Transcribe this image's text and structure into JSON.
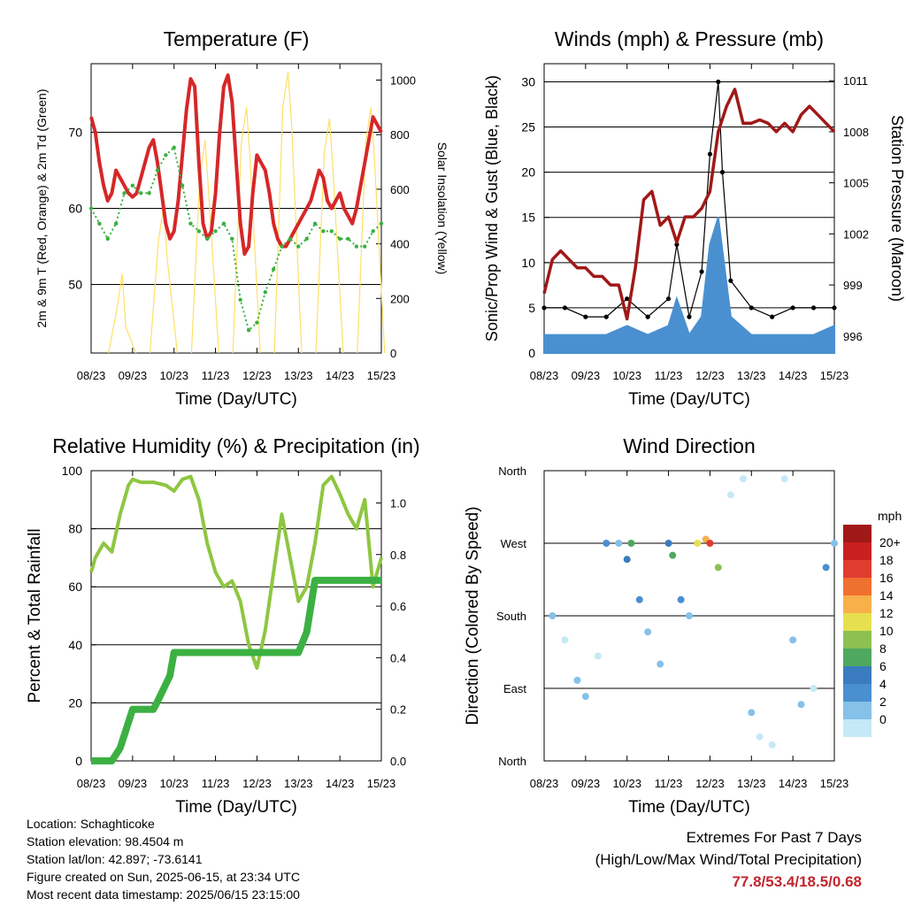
{
  "chart_data": [
    {
      "type": "line",
      "title": "Temperature (F)",
      "xlabel": "Time (Day/UTC)",
      "ylabel": "2m & 9m T (Red, Orange) & 2m Td (Green)",
      "y2label": "Solar Insolation (Yellow)",
      "x_ticks": [
        "08/23",
        "09/23",
        "10/23",
        "11/23",
        "12/23",
        "13/23",
        "14/23",
        "15/23"
      ],
      "y_ticks": [
        50,
        60,
        70
      ],
      "y2_ticks": [
        0,
        200,
        400,
        600,
        800,
        1000
      ],
      "ylim": [
        41,
        79
      ],
      "y2lim": [
        0,
        1060
      ],
      "grid": "horizontal",
      "series": [
        {
          "color": "#d62728",
          "x": [
            0,
            0.1,
            0.2,
            0.3,
            0.4,
            0.5,
            0.6,
            0.7,
            0.8,
            0.9,
            1.0,
            1.1,
            1.2,
            1.3,
            1.4,
            1.5,
            1.6,
            1.7,
            1.8,
            1.9,
            2.0,
            2.1,
            2.2,
            2.3,
            2.4,
            2.5,
            2.6,
            2.7,
            2.8,
            2.9,
            3.0,
            3.1,
            3.2,
            3.3,
            3.4,
            3.5,
            3.6,
            3.7,
            3.8,
            3.9,
            4.0,
            4.1,
            4.2,
            4.3,
            4.4,
            4.5,
            4.6,
            4.7,
            4.8,
            4.9,
            5.0,
            5.1,
            5.2,
            5.3,
            5.4,
            5.5,
            5.6,
            5.7,
            5.8,
            5.9,
            6.0,
            6.1,
            6.2,
            6.3,
            6.4,
            6.5,
            6.6,
            6.7,
            6.8,
            6.9,
            7.0
          ],
          "values": [
            72,
            70,
            66,
            63,
            61,
            62,
            65,
            64,
            63,
            62,
            61.5,
            62,
            64,
            66,
            68,
            69,
            66,
            62,
            58,
            56,
            57,
            61,
            67,
            73,
            77,
            76,
            66,
            58,
            56,
            57,
            62,
            70,
            76,
            77.5,
            74,
            66,
            58,
            54,
            55,
            62,
            67,
            66,
            65,
            62,
            58,
            56,
            55,
            55,
            56,
            57,
            58,
            59,
            60,
            61,
            63,
            65,
            64,
            61,
            60,
            61,
            62,
            60,
            59,
            58,
            60,
            63,
            66,
            69,
            72,
            71,
            70
          ]
        },
        {
          "color": "#f0a030",
          "x": [
            0,
            0.5,
            1.0,
            1.5,
            2.0,
            2.4,
            3.0,
            3.3,
            4.0,
            4.5,
            5.0,
            5.5,
            6.0,
            6.5,
            6.8,
            7.0
          ],
          "values": [
            71.5,
            61.8,
            61.3,
            68.8,
            56.8,
            76,
            57,
            77,
            66.5,
            56,
            57.8,
            64.5,
            61.5,
            62.8,
            71.5,
            70
          ]
        },
        {
          "color": "#3cb043",
          "x": [
            0,
            0.2,
            0.4,
            0.6,
            0.8,
            1.0,
            1.2,
            1.4,
            1.6,
            1.8,
            2.0,
            2.2,
            2.4,
            2.6,
            2.8,
            3.0,
            3.2,
            3.4,
            3.6,
            3.8,
            4.0,
            4.2,
            4.4,
            4.6,
            4.8,
            5.0,
            5.2,
            5.4,
            5.6,
            5.8,
            6.0,
            6.2,
            6.4,
            6.6,
            6.8,
            7.0
          ],
          "values": [
            60,
            58,
            56,
            58,
            62,
            63,
            62,
            62,
            65,
            67,
            68,
            63,
            58,
            57,
            56,
            57,
            58,
            56,
            48,
            44,
            45,
            49,
            52,
            55,
            56,
            55,
            56,
            58,
            57,
            57,
            56,
            56,
            55,
            55,
            57,
            58
          ]
        }
      ],
      "solar": {
        "color": "#ffe066",
        "peaks": [
          {
            "x": 0.75,
            "value": 290
          },
          {
            "x": 1.75,
            "value": 540
          },
          {
            "x": 2.75,
            "value": 780
          },
          {
            "x": 3.75,
            "value": 900
          },
          {
            "x": 4.75,
            "value": 1030
          },
          {
            "x": 5.75,
            "value": 860
          },
          {
            "x": 6.75,
            "value": 900
          }
        ]
      }
    },
    {
      "type": "scatter",
      "title": "Winds (mph) & Pressure (mb)",
      "xlabel": "Time (Day/UTC)",
      "ylabel": "Sonic/Prop Wind & Gust (Blue, Black)",
      "y2label": "Station Pressure (Maroon)",
      "x_ticks": [
        "08/23",
        "09/23",
        "10/23",
        "11/23",
        "12/23",
        "13/23",
        "14/23",
        "15/23"
      ],
      "y_ticks": [
        0,
        5,
        10,
        15,
        20,
        25,
        30
      ],
      "y2_ticks": [
        996,
        999,
        1002,
        1005,
        1008,
        1011
      ],
      "ylim": [
        0,
        32
      ],
      "y2lim": [
        995,
        1012
      ],
      "grid": "horizontal",
      "series": [
        {
          "name": "Sonic/Prop Wind",
          "color": "#4a90d0",
          "x": [
            0,
            0.5,
            1.0,
            1.5,
            2.0,
            2.5,
            3.0,
            3.2,
            3.5,
            3.8,
            4.0,
            4.2,
            4.5,
            5.0,
            5.5,
            6.0,
            6.5,
            7.0
          ],
          "values": [
            2,
            2,
            2,
            2,
            3,
            2,
            3,
            6,
            2,
            4,
            12,
            15,
            4,
            2,
            2,
            2,
            2,
            3
          ]
        },
        {
          "name": "Gust",
          "color": "#000000",
          "x": [
            0,
            0.5,
            1.0,
            1.5,
            2.0,
            2.5,
            3.0,
            3.2,
            3.5,
            3.8,
            4.0,
            4.2,
            4.3,
            4.5,
            5.0,
            5.5,
            6.0,
            6.5,
            7.0
          ],
          "values": [
            5,
            5,
            4,
            4,
            6,
            4,
            6,
            12,
            4,
            9,
            22,
            30,
            20,
            8,
            5,
            4,
            5,
            5,
            5
          ]
        }
      ],
      "pressure": {
        "x": [
          0,
          0.2,
          0.4,
          0.6,
          0.8,
          1.0,
          1.2,
          1.4,
          1.6,
          1.8,
          2.0,
          2.2,
          2.4,
          2.6,
          2.8,
          3.0,
          3.2,
          3.4,
          3.6,
          3.8,
          4.0,
          4.2,
          4.4,
          4.6,
          4.8,
          5.0,
          5.2,
          5.4,
          5.6,
          5.8,
          6.0,
          6.2,
          6.4,
          6.6,
          6.8,
          7.0
        ],
        "values": [
          998.5,
          1000.5,
          1001,
          1000.5,
          1000,
          1000,
          999.5,
          999.5,
          999,
          999,
          997,
          1000,
          1004,
          1004.5,
          1002.5,
          1003,
          1001.5,
          1003,
          1003,
          1003.5,
          1004.5,
          1008,
          1009.5,
          1010.5,
          1008.5,
          1008.5,
          1008.7,
          1008.5,
          1008,
          1008.5,
          1008,
          1009,
          1009.5,
          1009,
          1008.5,
          1008
        ]
      }
    },
    {
      "type": "line",
      "title": "Relative Humidity (%) & Precipitation (in)",
      "xlabel": "Time (Day/UTC)",
      "ylabel": "Percent & Total Rainfall",
      "x_ticks": [
        "08/23",
        "09/23",
        "10/23",
        "11/23",
        "12/23",
        "13/23",
        "14/23",
        "15/23"
      ],
      "y_ticks": [
        0,
        20,
        40,
        60,
        80,
        100
      ],
      "y2_ticks": [
        0.0,
        0.2,
        0.4,
        0.6,
        0.8,
        1.0
      ],
      "ylim": [
        0,
        100
      ],
      "y2lim": [
        0,
        1.125
      ],
      "grid": "horizontal",
      "series": [
        {
          "name": "Relative Humidity",
          "color": "#8ec641",
          "x": [
            0,
            0.1,
            0.3,
            0.5,
            0.7,
            0.9,
            1.0,
            1.2,
            1.5,
            1.8,
            2.0,
            2.2,
            2.4,
            2.6,
            2.8,
            3.0,
            3.2,
            3.4,
            3.6,
            3.8,
            4.0,
            4.2,
            4.4,
            4.6,
            4.8,
            5.0,
            5.2,
            5.4,
            5.6,
            5.8,
            6.0,
            6.2,
            6.4,
            6.6,
            6.8,
            7.0
          ],
          "values": [
            65,
            70,
            75,
            72,
            85,
            95,
            97,
            96,
            96,
            95,
            93,
            97,
            98,
            90,
            75,
            65,
            60,
            62,
            55,
            40,
            32,
            45,
            65,
            85,
            70,
            55,
            60,
            75,
            95,
            98,
            92,
            85,
            80,
            90,
            60,
            70
          ]
        },
        {
          "name": "Total Rainfall",
          "color": "#3cb043",
          "x": [
            0,
            0.5,
            0.7,
            0.9,
            1.0,
            1.5,
            1.6,
            1.9,
            2.0,
            2.2,
            3.0,
            4.0,
            5.0,
            5.2,
            5.4,
            5.6,
            6.0,
            7.0
          ],
          "values": [
            0,
            0,
            0.05,
            0.15,
            0.2,
            0.2,
            0.23,
            0.33,
            0.42,
            0.42,
            0.42,
            0.42,
            0.42,
            0.5,
            0.7,
            0.7,
            0.7,
            0.7
          ]
        }
      ]
    },
    {
      "type": "scatter",
      "title": "Wind Direction",
      "xlabel": "Time (Day/UTC)",
      "ylabel": "Direction (Colored By Speed)",
      "x_ticks": [
        "08/23",
        "09/23",
        "10/23",
        "11/23",
        "12/23",
        "13/23",
        "14/23",
        "15/23"
      ],
      "y_ticks": [
        "North",
        "East",
        "South",
        "West",
        "North"
      ],
      "ylim": [
        0,
        360
      ],
      "grid": "horizontal",
      "colorbar": {
        "unit": "mph",
        "labels": [
          "0",
          "2",
          "4",
          "6",
          "8",
          "10",
          "12",
          "14",
          "16",
          "18",
          "20+"
        ],
        "colors": [
          "#c6e9f7",
          "#85c1e9",
          "#4a90d0",
          "#3a7cbf",
          "#4fa860",
          "#8cc152",
          "#e6e050",
          "#f7b04a",
          "#f07030",
          "#e03c30",
          "#c82020",
          "#a01818"
        ]
      },
      "series": [
        {
          "name": "Direction",
          "x": [
            0.2,
            0.5,
            0.8,
            1.0,
            1.3,
            1.5,
            1.8,
            2.0,
            2.1,
            2.3,
            2.5,
            2.8,
            3.0,
            3.1,
            3.3,
            3.5,
            3.7,
            3.9,
            4.0,
            4.2,
            4.5,
            4.8,
            5.0,
            5.2,
            5.5,
            5.8,
            6.0,
            6.2,
            6.5,
            6.8,
            7.0
          ],
          "values": [
            180,
            150,
            100,
            80,
            130,
            270,
            270,
            250,
            270,
            200,
            160,
            120,
            270,
            255,
            200,
            180,
            270,
            275,
            270,
            240,
            330,
            350,
            60,
            30,
            20,
            350,
            150,
            70,
            90,
            240,
            270
          ],
          "speed": [
            2,
            1,
            2,
            3,
            1,
            5,
            3,
            6,
            8,
            4,
            2,
            2,
            7,
            9,
            4,
            3,
            12,
            15,
            18,
            10,
            1,
            1,
            2,
            1,
            1,
            1,
            2,
            3,
            1,
            4,
            3
          ]
        }
      ]
    }
  ],
  "info": {
    "location": "Location: Schaghticoke",
    "elevation": "Station elevation: 98.4504 m",
    "latlon": "Station lat/lon: 42.897; -73.6141",
    "created": "Figure created on Sun, 2025-06-15, at 23:34 UTC",
    "recent": "Most recent data timestamp: 2025/06/15 23:15:00"
  },
  "extremes": {
    "title": "Extremes For Past 7 Days",
    "subtitle": "(High/Low/Max Wind/Total Precipitation)",
    "values": "77.8/53.4/18.5/0.68",
    "value_color": "#c0272d"
  }
}
